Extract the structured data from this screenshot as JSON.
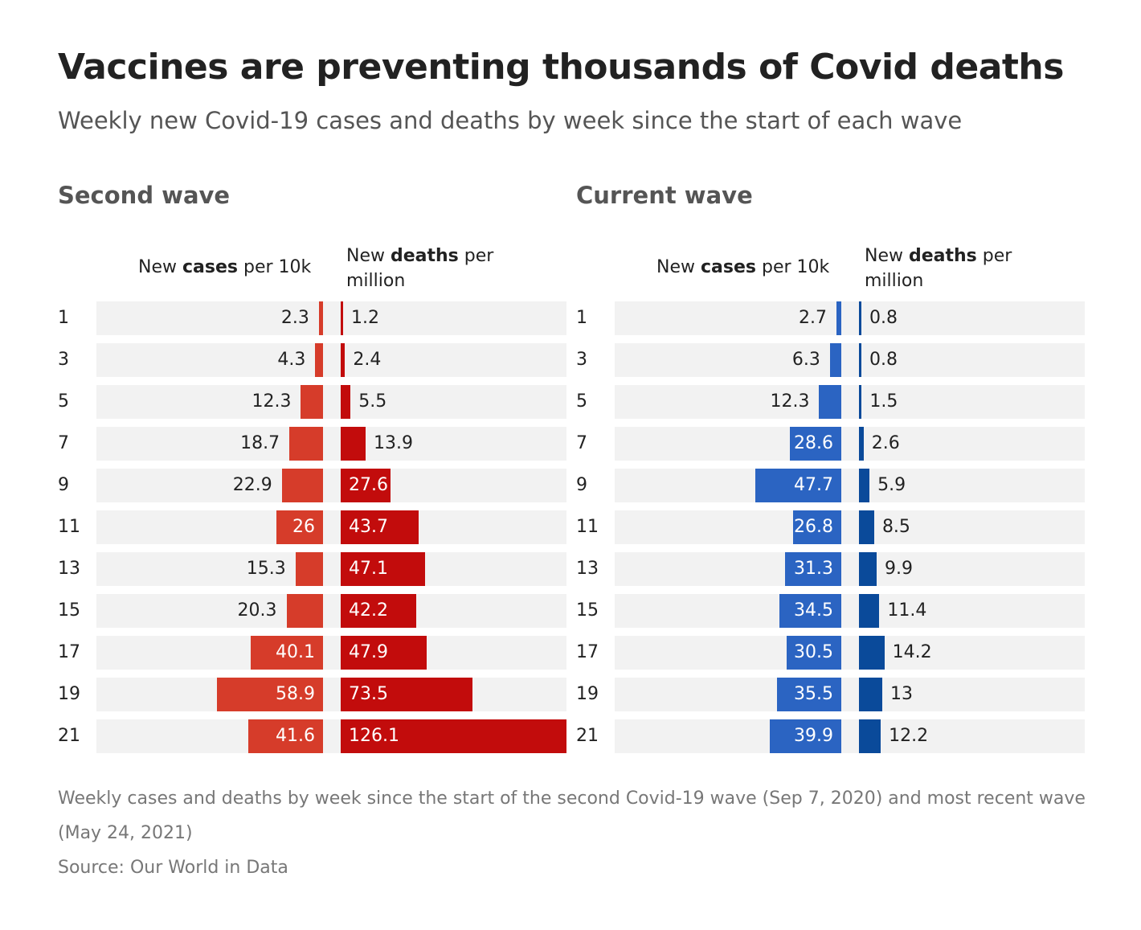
{
  "title": "Vaccines are preventing thousands of Covid deaths",
  "subtitle": "Weekly new Covid-19 cases and deaths by week since the start of each wave",
  "colors": {
    "second_cases": "#d63c2a",
    "second_deaths": "#c20c0c",
    "current_cases": "#2b64c2",
    "current_deaths": "#0a4a9a",
    "row_bg": "#f2f2f2"
  },
  "column_headers": {
    "cases_prefix": "New ",
    "cases_bold": "cases",
    "cases_suffix": " per 10k",
    "deaths_prefix": "New ",
    "deaths_bold": "deaths",
    "deaths_suffix": " per million"
  },
  "chart_data": [
    {
      "type": "bar",
      "title": "Second wave",
      "categories": [
        "1",
        "3",
        "5",
        "7",
        "9",
        "11",
        "13",
        "15",
        "17",
        "19",
        "21"
      ],
      "series": [
        {
          "name": "New cases per 10k",
          "values": [
            2.3,
            4.3,
            12.3,
            18.7,
            22.9,
            26,
            15.3,
            20.3,
            40.1,
            58.9,
            41.6
          ]
        },
        {
          "name": "New deaths per million",
          "values": [
            1.2,
            2.4,
            5.5,
            13.9,
            27.6,
            43.7,
            47.1,
            42.2,
            47.9,
            73.5,
            126.1
          ]
        }
      ]
    },
    {
      "type": "bar",
      "title": "Current wave",
      "categories": [
        "1",
        "3",
        "5",
        "7",
        "9",
        "11",
        "13",
        "15",
        "17",
        "19",
        "21"
      ],
      "series": [
        {
          "name": "New cases per 10k",
          "values": [
            2.7,
            6.3,
            12.3,
            28.6,
            47.7,
            26.8,
            31.3,
            34.5,
            30.5,
            35.5,
            39.9
          ]
        },
        {
          "name": "New deaths per million",
          "values": [
            0.8,
            0.8,
            1.5,
            2.6,
            5.9,
            8.5,
            9.9,
            11.4,
            14.2,
            13,
            12.2
          ]
        }
      ]
    }
  ],
  "footnote": "Weekly cases and deaths by week since the start of the second Covid-19 wave (Sep 7, 2020) and most recent wave (May 24, 2021)",
  "source": "Source: Our World in Data"
}
